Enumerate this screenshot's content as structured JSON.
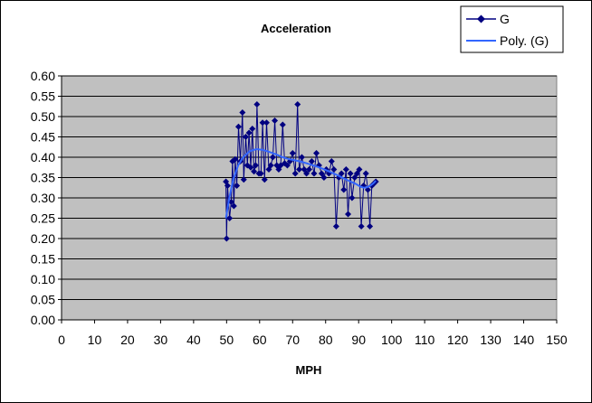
{
  "chart_data": {
    "type": "scatter",
    "title": "Acceleration",
    "xlabel": "MPH",
    "ylabel": "",
    "xlim": [
      0,
      150
    ],
    "ylim": [
      0,
      0.6
    ],
    "x_ticks": [
      "0",
      "10",
      "20",
      "30",
      "40",
      "50",
      "60",
      "70",
      "80",
      "90",
      "100",
      "110",
      "120",
      "130",
      "140",
      "150"
    ],
    "y_ticks": [
      "0.00",
      "0.05",
      "0.10",
      "0.15",
      "0.20",
      "0.25",
      "0.30",
      "0.35",
      "0.40",
      "0.45",
      "0.50",
      "0.55",
      "0.60"
    ],
    "grid": true,
    "legend_position": "top-right",
    "colors": {
      "plot_background": "#c0c0c0",
      "series_marker": "#000080",
      "trendline": "#3366ff"
    },
    "series": [
      {
        "name": "G",
        "style": "line-with-diamond-markers",
        "points": [
          [
            49.8,
            0.34
          ],
          [
            50.0,
            0.2
          ],
          [
            50.3,
            0.33
          ],
          [
            50.9,
            0.25
          ],
          [
            51.4,
            0.29
          ],
          [
            51.8,
            0.39
          ],
          [
            52.2,
            0.28
          ],
          [
            52.6,
            0.395
          ],
          [
            53.1,
            0.33
          ],
          [
            53.6,
            0.475
          ],
          [
            54.2,
            0.39
          ],
          [
            54.8,
            0.51
          ],
          [
            55.2,
            0.345
          ],
          [
            55.8,
            0.45
          ],
          [
            56.3,
            0.38
          ],
          [
            56.8,
            0.46
          ],
          [
            57.3,
            0.375
          ],
          [
            57.8,
            0.47
          ],
          [
            58.3,
            0.365
          ],
          [
            58.8,
            0.38
          ],
          [
            59.2,
            0.53
          ],
          [
            59.8,
            0.36
          ],
          [
            60.4,
            0.36
          ],
          [
            60.9,
            0.485
          ],
          [
            61.5,
            0.345
          ],
          [
            62.1,
            0.485
          ],
          [
            62.8,
            0.37
          ],
          [
            63.4,
            0.38
          ],
          [
            64.0,
            0.4
          ],
          [
            64.6,
            0.49
          ],
          [
            65.2,
            0.38
          ],
          [
            65.8,
            0.37
          ],
          [
            66.4,
            0.38
          ],
          [
            67.0,
            0.48
          ],
          [
            67.6,
            0.385
          ],
          [
            68.4,
            0.38
          ],
          [
            69.2,
            0.39
          ],
          [
            70.0,
            0.41
          ],
          [
            70.8,
            0.36
          ],
          [
            71.5,
            0.53
          ],
          [
            72.0,
            0.37
          ],
          [
            72.8,
            0.4
          ],
          [
            73.5,
            0.37
          ],
          [
            74.2,
            0.36
          ],
          [
            75.0,
            0.37
          ],
          [
            75.8,
            0.39
          ],
          [
            76.5,
            0.36
          ],
          [
            77.2,
            0.41
          ],
          [
            78.0,
            0.38
          ],
          [
            78.8,
            0.36
          ],
          [
            79.5,
            0.35
          ],
          [
            80.2,
            0.37
          ],
          [
            81.0,
            0.36
          ],
          [
            81.8,
            0.39
          ],
          [
            82.5,
            0.37
          ],
          [
            83.2,
            0.23
          ],
          [
            84.0,
            0.35
          ],
          [
            84.8,
            0.36
          ],
          [
            85.5,
            0.32
          ],
          [
            86.2,
            0.37
          ],
          [
            86.8,
            0.26
          ],
          [
            87.5,
            0.36
          ],
          [
            88.0,
            0.3
          ],
          [
            88.8,
            0.35
          ],
          [
            89.5,
            0.36
          ],
          [
            90.2,
            0.37
          ],
          [
            90.8,
            0.23
          ],
          [
            91.5,
            0.33
          ],
          [
            92.2,
            0.36
          ],
          [
            92.8,
            0.32
          ],
          [
            93.4,
            0.23
          ],
          [
            94.0,
            0.33
          ],
          [
            94.6,
            0.335
          ],
          [
            95.2,
            0.34
          ]
        ]
      },
      {
        "name": "Poly. (G)",
        "style": "trendline",
        "points": [
          [
            49.8,
            0.25
          ],
          [
            50.8,
            0.3
          ],
          [
            52.0,
            0.345
          ],
          [
            53.5,
            0.38
          ],
          [
            55.0,
            0.4
          ],
          [
            57.0,
            0.415
          ],
          [
            59.0,
            0.42
          ],
          [
            61.0,
            0.418
          ],
          [
            63.0,
            0.413
          ],
          [
            65.0,
            0.407
          ],
          [
            67.0,
            0.4
          ],
          [
            69.0,
            0.395
          ],
          [
            71.0,
            0.392
          ],
          [
            73.0,
            0.388
          ],
          [
            75.0,
            0.383
          ],
          [
            77.0,
            0.378
          ],
          [
            79.0,
            0.372
          ],
          [
            81.0,
            0.365
          ],
          [
            83.0,
            0.358
          ],
          [
            85.0,
            0.35
          ],
          [
            87.0,
            0.342
          ],
          [
            89.0,
            0.335
          ],
          [
            90.5,
            0.328
          ],
          [
            91.5,
            0.325
          ],
          [
            92.5,
            0.326
          ],
          [
            93.5,
            0.33
          ],
          [
            94.5,
            0.336
          ],
          [
            95.2,
            0.342
          ]
        ]
      }
    ]
  }
}
